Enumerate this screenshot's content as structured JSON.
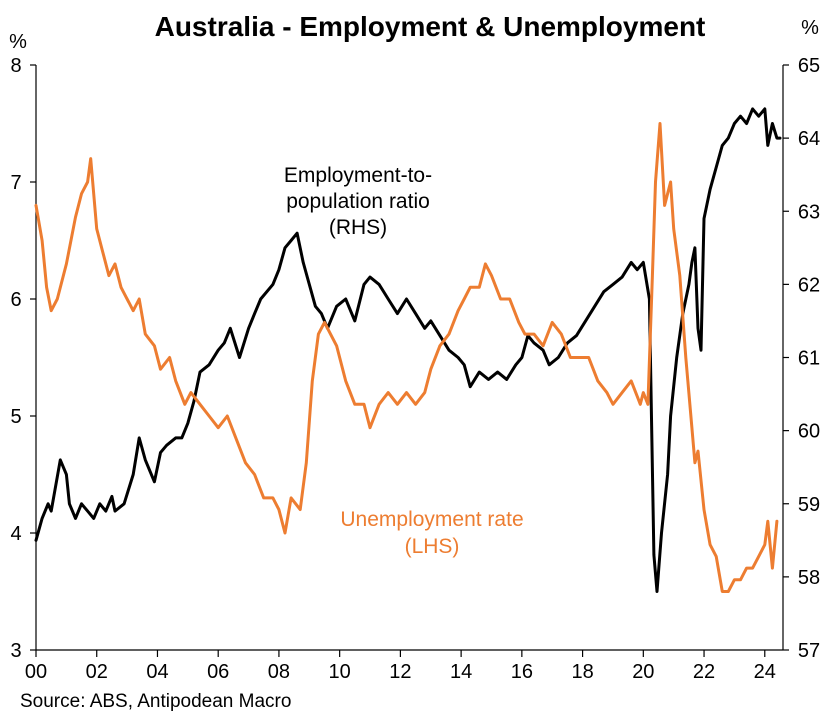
{
  "chart_data": {
    "type": "line",
    "title": "Australia - Employment & Unemployment",
    "source": "Source: ABS, Antipodean Macro",
    "left_unit": "%",
    "right_unit": "%",
    "x_ticks": [
      "00",
      "02",
      "04",
      "06",
      "08",
      "10",
      "12",
      "14",
      "16",
      "18",
      "20",
      "22",
      "24"
    ],
    "x_range": [
      2000.0,
      2024.6
    ],
    "left_axis": {
      "range": [
        3,
        8
      ],
      "ticks": [
        3,
        4,
        5,
        6,
        7,
        8
      ]
    },
    "right_axis": {
      "range": [
        57,
        65
      ],
      "ticks": [
        57,
        58,
        59,
        60,
        61,
        62,
        63,
        64,
        65
      ]
    },
    "colors": {
      "employment": "#000000",
      "unemployment": "#ED7D31"
    },
    "series": [
      {
        "id": "employment",
        "axis": "right",
        "annotation": [
          "Employment-to-",
          "population ratio",
          "(RHS)"
        ],
        "points": [
          [
            2000.0,
            58.5
          ],
          [
            2000.2,
            58.8
          ],
          [
            2000.4,
            59.0
          ],
          [
            2000.5,
            58.9
          ],
          [
            2000.8,
            59.6
          ],
          [
            2001.0,
            59.4
          ],
          [
            2001.1,
            59.0
          ],
          [
            2001.3,
            58.8
          ],
          [
            2001.5,
            59.0
          ],
          [
            2001.7,
            58.9
          ],
          [
            2001.9,
            58.8
          ],
          [
            2002.1,
            59.0
          ],
          [
            2002.3,
            58.9
          ],
          [
            2002.5,
            59.1
          ],
          [
            2002.6,
            58.9
          ],
          [
            2002.9,
            59.0
          ],
          [
            2003.2,
            59.4
          ],
          [
            2003.4,
            59.9
          ],
          [
            2003.6,
            59.6
          ],
          [
            2003.9,
            59.3
          ],
          [
            2004.1,
            59.7
          ],
          [
            2004.3,
            59.8
          ],
          [
            2004.6,
            59.9
          ],
          [
            2004.8,
            59.9
          ],
          [
            2005.0,
            60.1
          ],
          [
            2005.2,
            60.4
          ],
          [
            2005.4,
            60.8
          ],
          [
            2005.7,
            60.9
          ],
          [
            2006.0,
            61.1
          ],
          [
            2006.2,
            61.2
          ],
          [
            2006.4,
            61.4
          ],
          [
            2006.7,
            61.0
          ],
          [
            2007.0,
            61.4
          ],
          [
            2007.2,
            61.6
          ],
          [
            2007.4,
            61.8
          ],
          [
            2007.8,
            62.0
          ],
          [
            2008.0,
            62.2
          ],
          [
            2008.2,
            62.5
          ],
          [
            2008.4,
            62.6
          ],
          [
            2008.6,
            62.7
          ],
          [
            2008.8,
            62.3
          ],
          [
            2009.0,
            62.0
          ],
          [
            2009.2,
            61.7
          ],
          [
            2009.4,
            61.6
          ],
          [
            2009.6,
            61.4
          ],
          [
            2009.9,
            61.7
          ],
          [
            2010.2,
            61.8
          ],
          [
            2010.5,
            61.5
          ],
          [
            2010.8,
            62.0
          ],
          [
            2011.0,
            62.1
          ],
          [
            2011.3,
            62.0
          ],
          [
            2011.6,
            61.8
          ],
          [
            2011.9,
            61.6
          ],
          [
            2012.2,
            61.8
          ],
          [
            2012.5,
            61.6
          ],
          [
            2012.8,
            61.4
          ],
          [
            2013.0,
            61.5
          ],
          [
            2013.3,
            61.3
          ],
          [
            2013.6,
            61.1
          ],
          [
            2013.9,
            61.0
          ],
          [
            2014.1,
            60.9
          ],
          [
            2014.3,
            60.6
          ],
          [
            2014.6,
            60.8
          ],
          [
            2014.9,
            60.7
          ],
          [
            2015.2,
            60.8
          ],
          [
            2015.5,
            60.7
          ],
          [
            2015.8,
            60.9
          ],
          [
            2016.0,
            61.0
          ],
          [
            2016.2,
            61.3
          ],
          [
            2016.4,
            61.2
          ],
          [
            2016.7,
            61.1
          ],
          [
            2016.9,
            60.9
          ],
          [
            2017.2,
            61.0
          ],
          [
            2017.5,
            61.2
          ],
          [
            2017.8,
            61.3
          ],
          [
            2018.1,
            61.5
          ],
          [
            2018.4,
            61.7
          ],
          [
            2018.7,
            61.9
          ],
          [
            2019.0,
            62.0
          ],
          [
            2019.3,
            62.1
          ],
          [
            2019.6,
            62.3
          ],
          [
            2019.8,
            62.2
          ],
          [
            2020.0,
            62.3
          ],
          [
            2020.2,
            61.8
          ],
          [
            2020.35,
            58.3
          ],
          [
            2020.45,
            57.8
          ],
          [
            2020.6,
            58.6
          ],
          [
            2020.8,
            59.4
          ],
          [
            2020.9,
            60.2
          ],
          [
            2021.1,
            61.0
          ],
          [
            2021.3,
            61.6
          ],
          [
            2021.5,
            62.0
          ],
          [
            2021.6,
            62.3
          ],
          [
            2021.7,
            62.5
          ],
          [
            2021.8,
            61.4
          ],
          [
            2021.9,
            61.1
          ],
          [
            2022.0,
            62.9
          ],
          [
            2022.2,
            63.3
          ],
          [
            2022.4,
            63.6
          ],
          [
            2022.6,
            63.9
          ],
          [
            2022.8,
            64.0
          ],
          [
            2023.0,
            64.2
          ],
          [
            2023.2,
            64.3
          ],
          [
            2023.4,
            64.2
          ],
          [
            2023.6,
            64.4
          ],
          [
            2023.8,
            64.3
          ],
          [
            2024.0,
            64.4
          ],
          [
            2024.1,
            63.9
          ],
          [
            2024.25,
            64.2
          ],
          [
            2024.4,
            64.0
          ],
          [
            2024.5,
            64.0
          ]
        ]
      },
      {
        "id": "unemployment",
        "axis": "left",
        "annotation": [
          "Unemployment rate",
          "(LHS)"
        ],
        "points": [
          [
            2000.0,
            6.8
          ],
          [
            2000.2,
            6.5
          ],
          [
            2000.35,
            6.1
          ],
          [
            2000.5,
            5.9
          ],
          [
            2000.7,
            6.0
          ],
          [
            2001.0,
            6.3
          ],
          [
            2001.3,
            6.7
          ],
          [
            2001.5,
            6.9
          ],
          [
            2001.7,
            7.0
          ],
          [
            2001.8,
            7.2
          ],
          [
            2002.0,
            6.6
          ],
          [
            2002.2,
            6.4
          ],
          [
            2002.4,
            6.2
          ],
          [
            2002.6,
            6.3
          ],
          [
            2002.8,
            6.1
          ],
          [
            2003.0,
            6.0
          ],
          [
            2003.2,
            5.9
          ],
          [
            2003.4,
            6.0
          ],
          [
            2003.6,
            5.7
          ],
          [
            2003.9,
            5.6
          ],
          [
            2004.1,
            5.4
          ],
          [
            2004.4,
            5.5
          ],
          [
            2004.6,
            5.3
          ],
          [
            2004.9,
            5.1
          ],
          [
            2005.1,
            5.2
          ],
          [
            2005.4,
            5.1
          ],
          [
            2005.7,
            5.0
          ],
          [
            2006.0,
            4.9
          ],
          [
            2006.3,
            5.0
          ],
          [
            2006.6,
            4.8
          ],
          [
            2006.9,
            4.6
          ],
          [
            2007.2,
            4.5
          ],
          [
            2007.5,
            4.3
          ],
          [
            2007.8,
            4.3
          ],
          [
            2008.0,
            4.2
          ],
          [
            2008.2,
            4.0
          ],
          [
            2008.4,
            4.3
          ],
          [
            2008.7,
            4.2
          ],
          [
            2008.9,
            4.6
          ],
          [
            2009.1,
            5.3
          ],
          [
            2009.3,
            5.7
          ],
          [
            2009.5,
            5.8
          ],
          [
            2009.7,
            5.7
          ],
          [
            2009.9,
            5.6
          ],
          [
            2010.2,
            5.3
          ],
          [
            2010.5,
            5.1
          ],
          [
            2010.8,
            5.1
          ],
          [
            2011.0,
            4.9
          ],
          [
            2011.3,
            5.1
          ],
          [
            2011.6,
            5.2
          ],
          [
            2011.9,
            5.1
          ],
          [
            2012.2,
            5.2
          ],
          [
            2012.5,
            5.1
          ],
          [
            2012.8,
            5.2
          ],
          [
            2013.0,
            5.4
          ],
          [
            2013.3,
            5.6
          ],
          [
            2013.6,
            5.7
          ],
          [
            2013.9,
            5.9
          ],
          [
            2014.1,
            6.0
          ],
          [
            2014.3,
            6.1
          ],
          [
            2014.6,
            6.1
          ],
          [
            2014.8,
            6.3
          ],
          [
            2015.0,
            6.2
          ],
          [
            2015.3,
            6.0
          ],
          [
            2015.6,
            6.0
          ],
          [
            2015.9,
            5.8
          ],
          [
            2016.1,
            5.7
          ],
          [
            2016.4,
            5.7
          ],
          [
            2016.7,
            5.6
          ],
          [
            2017.0,
            5.8
          ],
          [
            2017.3,
            5.7
          ],
          [
            2017.6,
            5.5
          ],
          [
            2017.9,
            5.5
          ],
          [
            2018.2,
            5.5
          ],
          [
            2018.5,
            5.3
          ],
          [
            2018.8,
            5.2
          ],
          [
            2019.0,
            5.1
          ],
          [
            2019.3,
            5.2
          ],
          [
            2019.6,
            5.3
          ],
          [
            2019.9,
            5.1
          ],
          [
            2020.0,
            5.2
          ],
          [
            2020.15,
            5.1
          ],
          [
            2020.3,
            6.2
          ],
          [
            2020.4,
            7.0
          ],
          [
            2020.55,
            7.5
          ],
          [
            2020.7,
            6.8
          ],
          [
            2020.9,
            7.0
          ],
          [
            2021.0,
            6.6
          ],
          [
            2021.2,
            6.2
          ],
          [
            2021.4,
            5.5
          ],
          [
            2021.6,
            4.9
          ],
          [
            2021.7,
            4.6
          ],
          [
            2021.8,
            4.7
          ],
          [
            2022.0,
            4.2
          ],
          [
            2022.2,
            3.9
          ],
          [
            2022.4,
            3.8
          ],
          [
            2022.6,
            3.5
          ],
          [
            2022.8,
            3.5
          ],
          [
            2023.0,
            3.6
          ],
          [
            2023.2,
            3.6
          ],
          [
            2023.4,
            3.7
          ],
          [
            2023.6,
            3.7
          ],
          [
            2023.8,
            3.8
          ],
          [
            2024.0,
            3.9
          ],
          [
            2024.1,
            4.1
          ],
          [
            2024.25,
            3.7
          ],
          [
            2024.4,
            4.1
          ]
        ]
      }
    ]
  }
}
